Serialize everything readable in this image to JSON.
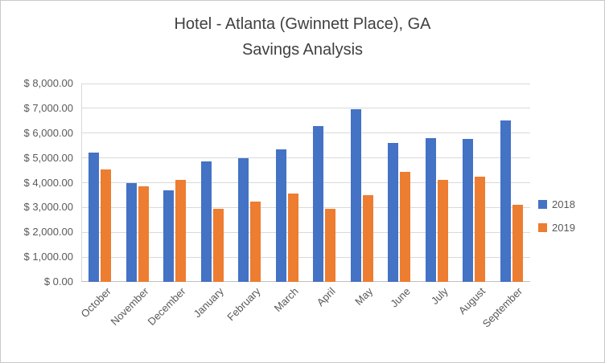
{
  "title": {
    "line1": "Hotel - Atlanta (Gwinnett Place), GA",
    "line2": "Savings Analysis"
  },
  "chart_data": {
    "type": "bar",
    "title": "Hotel - Atlanta (Gwinnett Place), GA Savings Analysis",
    "categories": [
      "October",
      "November",
      "December",
      "January",
      "February",
      "March",
      "April",
      "May",
      "June",
      "July",
      "August",
      "September"
    ],
    "series": [
      {
        "name": "2018",
        "color": "#4472C4",
        "values": [
          5200,
          4000,
          3700,
          4850,
          5000,
          5350,
          6300,
          6950,
          5600,
          5800,
          5750,
          6500
        ]
      },
      {
        "name": "2019",
        "color": "#ED7D31",
        "values": [
          4550,
          3850,
          4100,
          2950,
          3250,
          3550,
          2950,
          3500,
          4450,
          4100,
          4250,
          3100
        ]
      }
    ],
    "xlabel": "",
    "ylabel": "",
    "ylim": [
      0,
      8000
    ],
    "ytick_step": 1000,
    "ytick_labels": [
      "$ 0.00",
      "$ 1,000.00",
      "$ 2,000.00",
      "$ 3,000.00",
      "$ 4,000.00",
      "$ 5,000.00",
      "$ 6,000.00",
      "$ 7,000.00",
      "$ 8,000.00"
    ],
    "grid": true,
    "legend_position": "right",
    "axis_text_color": "#595959",
    "title_color": "#404040",
    "grid_color": "#d9d9d9"
  }
}
